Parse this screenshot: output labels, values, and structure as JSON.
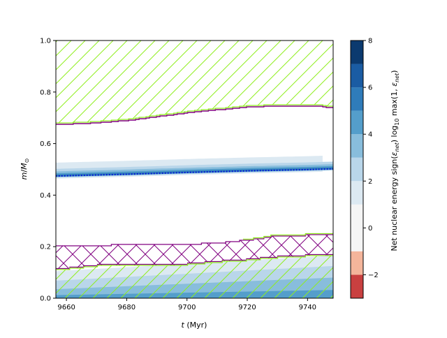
{
  "chart_data": {
    "type": "heatmap",
    "title": "",
    "xlabel": "t (Myr)",
    "ylabel": "m/M⊙",
    "xlim": [
      9656.5,
      9748.5
    ],
    "ylim": [
      0.0,
      1.0
    ],
    "x_ticks": [
      "9660",
      "9680",
      "9700",
      "9720",
      "9740"
    ],
    "y_ticks": [
      "0.0",
      "0.2",
      "0.4",
      "0.6",
      "0.8",
      "1.0"
    ],
    "colorbar": {
      "label": "Net nuclear energy sign(εnet) log10 max(1, εnet)",
      "label_parts": {
        "pre": "Net nuclear energy sign(",
        "eps1": "ε",
        "sub1": "net",
        "mid1": ") log",
        "sub_log": "10",
        "mid2": " max(1, ",
        "eps2": "ε",
        "sub2": "net",
        "post": ")"
      },
      "ticks": [
        "−2",
        "0",
        "2",
        "4",
        "6",
        "8"
      ],
      "tick_values": [
        -2,
        0,
        2,
        4,
        6,
        8
      ],
      "range": [
        -3,
        8
      ],
      "levels": [
        {
          "from": -3,
          "to": -2,
          "color": "#c94040"
        },
        {
          "from": -2,
          "to": -1,
          "color": "#f4b59b"
        },
        {
          "from": -1,
          "to": 0,
          "color": "#f5f5f5"
        },
        {
          "from": 0,
          "to": 1,
          "color": "#f5f5f5"
        },
        {
          "from": 1,
          "to": 2,
          "color": "#dce9f2"
        },
        {
          "from": 2,
          "to": 3,
          "color": "#b9d6ea"
        },
        {
          "from": 3,
          "to": 4,
          "color": "#88bddc"
        },
        {
          "from": 4,
          "to": 5,
          "color": "#549ecb"
        },
        {
          "from": 5,
          "to": 6,
          "color": "#2f7cba"
        },
        {
          "from": 6,
          "to": 7,
          "color": "#1a5ca3"
        },
        {
          "from": 7,
          "to": 8,
          "color": "#0b3a6f"
        }
      ]
    },
    "burning_shell": {
      "x": [
        9656.5,
        9680,
        9700,
        9720,
        9740,
        9748.5
      ],
      "center": [
        0.474,
        0.481,
        0.488,
        0.494,
        0.499,
        0.502
      ],
      "level_widths": [
        {
          "level": 1,
          "lower": 0.01,
          "upper": 0.052,
          "end_x": 9745,
          "color": "#dce9f2"
        },
        {
          "level": 2,
          "lower": 0.006,
          "upper": 0.028,
          "end_x": 9748.5,
          "color": "#b9d6ea"
        },
        {
          "level": 3,
          "lower": 0.004,
          "upper": 0.018,
          "end_x": 9748.5,
          "color": "#88bddc"
        },
        {
          "level": 4,
          "lower": 0.003,
          "upper": 0.011,
          "end_x": 9748.5,
          "color": "#549ecb"
        },
        {
          "level": 5,
          "lower": 0.002,
          "upper": 0.006,
          "end_x": 9748.5,
          "color": "#2f7cba"
        }
      ],
      "dotted_line_color": "#0000dd"
    },
    "core_burning": {
      "bands": [
        {
          "level": 1,
          "top_left": 0.105,
          "top_right": 0.165,
          "color": "#dce9f2"
        },
        {
          "level": 2,
          "top_left": 0.068,
          "top_right": 0.125,
          "color": "#b9d6ea"
        },
        {
          "level": 3,
          "top_left": 0.035,
          "top_right": 0.08,
          "color": "#88bddc"
        },
        {
          "level": 4,
          "top_left": 0.012,
          "top_right": 0.032,
          "color": "#549ecb"
        }
      ]
    },
    "envelope_convection": {
      "x": [
        9656.5,
        9665,
        9680,
        9700,
        9720,
        9735,
        9745,
        9748.5
      ],
      "lower": [
        0.681,
        0.682,
        0.695,
        0.725,
        0.748,
        0.752,
        0.749,
        0.742
      ],
      "upper": 1.0,
      "hatch": "/",
      "edge_color": "#90ee20"
    },
    "overshoot_region": {
      "x": [
        9656.5,
        9660,
        9670,
        9680,
        9690,
        9700,
        9710,
        9720,
        9730,
        9740,
        9748.5
      ],
      "lower": [
        0.11,
        0.113,
        0.125,
        0.128,
        0.128,
        0.13,
        0.14,
        0.147,
        0.158,
        0.163,
        0.165
      ],
      "upper": [
        0.205,
        0.205,
        0.205,
        0.207,
        0.208,
        0.209,
        0.215,
        0.225,
        0.243,
        0.244,
        0.245
      ],
      "hatch": "x",
      "edge_color": "#800080"
    },
    "core_convection": {
      "x": [
        9656.5,
        9660,
        9670,
        9680,
        9690,
        9700,
        9710,
        9720,
        9730,
        9740,
        9748.5
      ],
      "upper": [
        0.11,
        0.113,
        0.125,
        0.128,
        0.128,
        0.13,
        0.14,
        0.147,
        0.158,
        0.163,
        0.165
      ],
      "lower": 0.0,
      "hatch": "/",
      "edge_color": "#90ee20"
    }
  }
}
